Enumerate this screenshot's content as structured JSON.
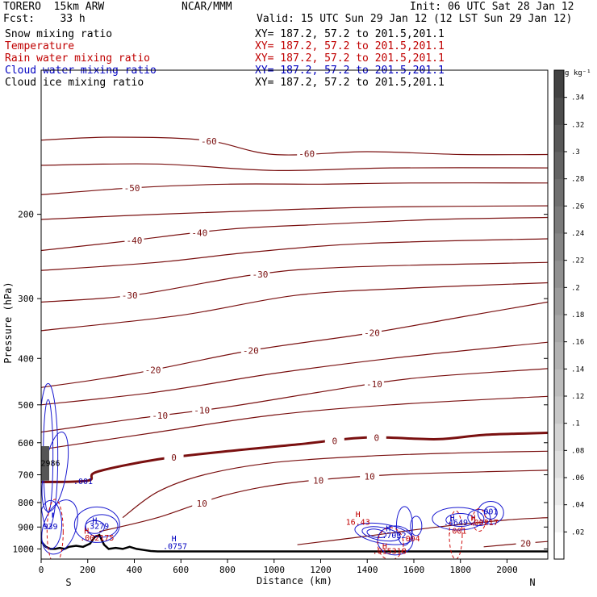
{
  "header": {
    "model": "TORERO  15km ARW",
    "center": "NCAR/MMM",
    "init": "Init: 06 UTC Sat 28 Jan 12",
    "fcst": "Fcst:    33 h",
    "valid": "Valid: 15 UTC Sun 29 Jan 12 (12 LST Sun 29 Jan 12)"
  },
  "fields": [
    {
      "name": "Snow mixing ratio",
      "xy": "XY= 187.2, 57.2 to 201.5,201.1",
      "color": "#000000",
      "xy_color": "#000000"
    },
    {
      "name": "Temperature",
      "xy": "XY= 187.2, 57.2 to 201.5,201.1",
      "color": "#c00000",
      "xy_color": "#c00000"
    },
    {
      "name": "Rain water mixing ratio",
      "xy": "XY= 187.2, 57.2 to 201.5,201.1",
      "color": "#c00000",
      "xy_color": "#c00000"
    },
    {
      "name": "Cloud water mixing ratio",
      "xy": "XY= 187.2, 57.2 to 201.5,201.1",
      "color": "#0000c0",
      "xy_color": "#0000c0"
    },
    {
      "name": "Cloud ice mixing ratio",
      "xy": "XY= 187.2, 57.2 to 201.5,201.1",
      "color": "#000000",
      "xy_color": "#000000"
    }
  ],
  "chart_data": {
    "type": "cross-section contour",
    "xlabel": "Distance (km)",
    "ylabel": "Pressure (hPa)",
    "x_ticks": [
      0,
      200,
      400,
      600,
      800,
      1000,
      1200,
      1400,
      1600,
      1800,
      2000
    ],
    "y_ticks": [
      200,
      300,
      400,
      500,
      600,
      700,
      800,
      900,
      1000
    ],
    "xlim": [
      0,
      2175
    ],
    "ylim": [
      100,
      1050
    ],
    "y_scale": "log",
    "x_end_labels": {
      "left": "S",
      "right": "N"
    },
    "colorbar": {
      "units": "g kg⁻¹",
      "ticks": [
        ".02",
        ".04",
        ".06",
        ".08",
        ".1",
        ".12",
        ".14",
        ".16",
        ".18",
        ".2",
        ".22",
        ".24",
        ".26",
        ".28",
        ".3",
        ".32",
        ".34"
      ],
      "values": [
        0.02,
        0.04,
        0.06,
        0.08,
        0.1,
        0.12,
        0.14,
        0.16,
        0.18,
        0.2,
        0.22,
        0.24,
        0.26,
        0.28,
        0.3,
        0.32,
        0.34
      ],
      "vmax": 0.36
    },
    "temperature_contours": [
      {
        "level": -60,
        "points": [
          [
            0,
            140
          ],
          [
            300,
            138
          ],
          [
            700,
            140
          ],
          [
            1000,
            150
          ],
          [
            1400,
            148
          ],
          [
            1800,
            150
          ],
          [
            2175,
            150
          ]
        ],
        "labels": [
          [
            720,
            "-60"
          ],
          [
            1140,
            "-60"
          ]
        ]
      },
      {
        "level": -55,
        "points": [
          [
            0,
            158
          ],
          [
            500,
            157
          ],
          [
            1000,
            162
          ],
          [
            1500,
            160
          ],
          [
            2175,
            160
          ]
        ],
        "labels": []
      },
      {
        "level": -50,
        "points": [
          [
            0,
            182
          ],
          [
            400,
            176
          ],
          [
            800,
            173
          ],
          [
            1200,
            173
          ],
          [
            1600,
            172
          ],
          [
            2175,
            172
          ]
        ],
        "labels": [
          [
            390,
            "-50"
          ]
        ]
      },
      {
        "level": -45,
        "points": [
          [
            0,
            205
          ],
          [
            500,
            200
          ],
          [
            1000,
            196
          ],
          [
            1500,
            193
          ],
          [
            2175,
            192
          ]
        ],
        "labels": []
      },
      {
        "level": -40,
        "points": [
          [
            0,
            238
          ],
          [
            350,
            228
          ],
          [
            800,
            215
          ],
          [
            1200,
            210
          ],
          [
            1700,
            205
          ],
          [
            2175,
            203
          ]
        ],
        "labels": [
          [
            400,
            "-40"
          ],
          [
            680,
            "-40"
          ]
        ]
      },
      {
        "level": -35,
        "points": [
          [
            0,
            262
          ],
          [
            500,
            252
          ],
          [
            900,
            240
          ],
          [
            1400,
            230
          ],
          [
            2175,
            225
          ]
        ],
        "labels": []
      },
      {
        "level": -30,
        "points": [
          [
            0,
            305
          ],
          [
            400,
            295
          ],
          [
            900,
            268
          ],
          [
            1300,
            258
          ],
          [
            2175,
            252
          ]
        ],
        "labels": [
          [
            380,
            "-30"
          ],
          [
            940,
            "-30"
          ]
        ]
      },
      {
        "level": -25,
        "points": [
          [
            0,
            350
          ],
          [
            600,
            325
          ],
          [
            1100,
            295
          ],
          [
            1600,
            285
          ],
          [
            2175,
            278
          ]
        ],
        "labels": []
      },
      {
        "level": -20,
        "points": [
          [
            0,
            460
          ],
          [
            400,
            430
          ],
          [
            900,
            385
          ],
          [
            1400,
            355
          ],
          [
            1800,
            328
          ],
          [
            2175,
            305
          ]
        ],
        "labels": [
          [
            480,
            "-20"
          ],
          [
            900,
            "-20"
          ],
          [
            1420,
            "-20"
          ]
        ]
      },
      {
        "level": -15,
        "points": [
          [
            0,
            500
          ],
          [
            500,
            470
          ],
          [
            1000,
            430
          ],
          [
            1500,
            400
          ],
          [
            2175,
            370
          ]
        ],
        "labels": []
      },
      {
        "level": -10,
        "points": [
          [
            0,
            570
          ],
          [
            400,
            535
          ],
          [
            800,
            505
          ],
          [
            1200,
            470
          ],
          [
            1600,
            440
          ],
          [
            2175,
            420
          ]
        ],
        "labels": [
          [
            510,
            "-10"
          ],
          [
            690,
            "-10"
          ],
          [
            1430,
            "-10"
          ]
        ]
      },
      {
        "level": -5,
        "points": [
          [
            0,
            620
          ],
          [
            500,
            570
          ],
          [
            1000,
            525
          ],
          [
            1500,
            500
          ],
          [
            2175,
            480
          ]
        ],
        "labels": []
      },
      {
        "level": 0,
        "points": [
          [
            0,
            725
          ],
          [
            200,
            720
          ],
          [
            240,
            690
          ],
          [
            500,
            650
          ],
          [
            800,
            625
          ],
          [
            1100,
            605
          ],
          [
            1400,
            585
          ],
          [
            1700,
            590
          ],
          [
            1900,
            578
          ],
          [
            2175,
            572
          ]
        ],
        "labels": [
          [
            570,
            "0"
          ],
          [
            1260,
            "0"
          ],
          [
            1440,
            "0"
          ]
        ]
      },
      {
        "level": 5,
        "points": [
          [
            350,
            860
          ],
          [
            500,
            760
          ],
          [
            700,
            700
          ],
          [
            1000,
            660
          ],
          [
            1400,
            640
          ],
          [
            1800,
            630
          ],
          [
            2175,
            625
          ]
        ],
        "labels": []
      },
      {
        "level": 10,
        "points": [
          [
            250,
            920
          ],
          [
            500,
            860
          ],
          [
            800,
            770
          ],
          [
            1100,
            725
          ],
          [
            1500,
            700
          ],
          [
            1900,
            690
          ],
          [
            2175,
            685
          ]
        ],
        "labels": [
          [
            690,
            "10"
          ],
          [
            1190,
            "10"
          ],
          [
            1410,
            "10"
          ]
        ]
      },
      {
        "level": 15,
        "points": [
          [
            1100,
            980
          ],
          [
            1400,
            940
          ],
          [
            1700,
            900
          ],
          [
            2000,
            870
          ],
          [
            2175,
            860
          ]
        ],
        "labels": []
      },
      {
        "level": 20,
        "points": [
          [
            1900,
            990
          ],
          [
            2050,
            975
          ],
          [
            2175,
            965
          ]
        ],
        "labels": [
          [
            2080,
            "20"
          ]
        ]
      }
    ],
    "cloud_water_contours_label": ".001",
    "annotations": [
      {
        "text": "2986",
        "x": 40,
        "y": 660,
        "color": "#000000"
      },
      {
        "text": ".001",
        "x": 180,
        "y": 720,
        "color": "#0000c0"
      },
      {
        "text": "939",
        "x": 40,
        "y": 895,
        "color": "#0000c0"
      },
      {
        "text": "H",
        "x": 230,
        "y": 870,
        "color": "#0000c0"
      },
      {
        "text": "3279",
        "x": 250,
        "y": 893,
        "color": "#0000c0"
      },
      {
        "text": "H",
        "x": 195,
        "y": 915,
        "color": "#c00000"
      },
      {
        "text": ".002175",
        "x": 240,
        "y": 945,
        "color": "#c00000"
      },
      {
        "text": "H",
        "x": 570,
        "y": 950,
        "color": "#0000c0"
      },
      {
        "text": ".0757",
        "x": 575,
        "y": 985,
        "color": "#0000c0"
      },
      {
        "text": "H",
        "x": 1360,
        "y": 845,
        "color": "#c00000"
      },
      {
        "text": "16.43",
        "x": 1360,
        "y": 877,
        "color": "#c00000"
      },
      {
        "text": "H",
        "x": 1490,
        "y": 905,
        "color": "#0000c0"
      },
      {
        "text": ".7032",
        "x": 1515,
        "y": 935,
        "color": "#0000c0"
      },
      {
        "text": ".004",
        "x": 1585,
        "y": 950,
        "color": "#c00000"
      },
      {
        "text": "H",
        "x": 1475,
        "y": 985,
        "color": "#c00000"
      },
      {
        "text": ".015318",
        "x": 1495,
        "y": 1008,
        "color": "#c00000"
      },
      {
        "text": "H",
        "x": 1765,
        "y": 860,
        "color": "#0000c0"
      },
      {
        "text": ".4649",
        "x": 1780,
        "y": 878,
        "color": "#0000c0"
      },
      {
        "text": "H",
        "x": 1855,
        "y": 860,
        "color": "#c00000"
      },
      {
        "text": ".00217",
        "x": 1900,
        "y": 878,
        "color": "#c00000"
      },
      {
        "text": ".001",
        "x": 1785,
        "y": 915,
        "color": "#c00000"
      },
      {
        "text": ".001",
        "x": 1920,
        "y": 833,
        "color": "#0000c0"
      }
    ]
  }
}
